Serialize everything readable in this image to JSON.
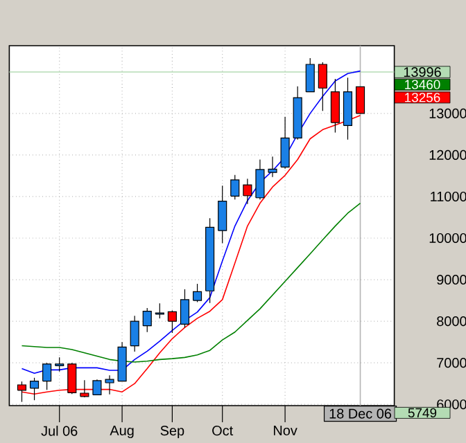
{
  "chart_data": {
    "type": "candlestick",
    "x": [
      "2006-06-12",
      "2006-06-19",
      "2006-06-26",
      "2006-07-03",
      "2006-07-10",
      "2006-07-17",
      "2006-07-24",
      "2006-07-31",
      "2006-08-07",
      "2006-08-14",
      "2006-08-21",
      "2006-08-28",
      "2006-09-04",
      "2006-09-11",
      "2006-09-18",
      "2006-09-25",
      "2006-10-02",
      "2006-10-09",
      "2006-10-16",
      "2006-10-23",
      "2006-10-30",
      "2006-11-06",
      "2006-11-13",
      "2006-11-20",
      "2006-11-27",
      "2006-12-04",
      "2006-12-11",
      "2006-12-18"
    ],
    "ohlc": [
      [
        6470,
        6550,
        6060,
        6340
      ],
      [
        6390,
        6640,
        6100,
        6560
      ],
      [
        6560,
        7000,
        6350,
        6970
      ],
      [
        6930,
        7130,
        6790,
        6970
      ],
      [
        6970,
        7000,
        6250,
        6280
      ],
      [
        6270,
        6580,
        6170,
        6190
      ],
      [
        6230,
        6600,
        6230,
        6570
      ],
      [
        6520,
        6700,
        6240,
        6600
      ],
      [
        6560,
        7500,
        6560,
        7380
      ],
      [
        7410,
        8130,
        7270,
        8000
      ],
      [
        7890,
        8320,
        7740,
        8240
      ],
      [
        8170,
        8430,
        8070,
        8200
      ],
      [
        8230,
        8260,
        7720,
        8000
      ],
      [
        7930,
        8770,
        7850,
        8520
      ],
      [
        8500,
        8900,
        8460,
        8710
      ],
      [
        8730,
        10480,
        8440,
        10260
      ],
      [
        10180,
        11260,
        9880,
        10890
      ],
      [
        11010,
        11520,
        10930,
        11400
      ],
      [
        11280,
        11430,
        10820,
        11020
      ],
      [
        10970,
        11890,
        10930,
        11650
      ],
      [
        11580,
        11960,
        11470,
        11660
      ],
      [
        11710,
        12920,
        11670,
        12410
      ],
      [
        12410,
        13650,
        12370,
        13380
      ],
      [
        13520,
        14330,
        13520,
        14180
      ],
      [
        14180,
        14230,
        13060,
        13610
      ],
      [
        13520,
        13830,
        12540,
        12780
      ],
      [
        12710,
        13860,
        12370,
        13520
      ],
      [
        13640,
        13640,
        13000,
        13000
      ]
    ],
    "colors": [
      "#ff0000",
      "#1a80e6",
      "#1a80e6",
      "#1a80e6",
      "#ff0000",
      "#ff0000",
      "#1a80e6",
      "#1a80e6",
      "#1a80e6",
      "#1a80e6",
      "#1a80e6",
      "#1a80e6",
      "#ff0000",
      "#1a80e6",
      "#1a80e6",
      "#1a80e6",
      "#1a80e6",
      "#1a80e6",
      "#ff0000",
      "#1a80e6",
      "#1a80e6",
      "#1a80e6",
      "#1a80e6",
      "#1a80e6",
      "#ff0000",
      "#ff0000",
      "#1a80e6",
      "#ff0000"
    ],
    "series": [
      {
        "type": "line",
        "color": "#0000ff",
        "values": [
          6860,
          6750,
          6830,
          6830,
          6880,
          6880,
          6880,
          6820,
          6820,
          7080,
          7280,
          7520,
          7780,
          8020,
          8220,
          8570,
          9450,
          10290,
          10900,
          11340,
          11620,
          11950,
          12500,
          13000,
          13410,
          13780,
          13960,
          14020
        ]
      },
      {
        "type": "line",
        "color": "#ff0000",
        "values": [
          6300,
          6250,
          6300,
          6340,
          6360,
          6360,
          6360,
          6360,
          6300,
          6500,
          6860,
          7240,
          7580,
          7850,
          8070,
          8240,
          8520,
          9400,
          10290,
          10840,
          11230,
          11510,
          11890,
          12390,
          12610,
          12720,
          12830,
          12950
        ]
      },
      {
        "type": "line",
        "color": "#008000",
        "values": [
          7410,
          7390,
          7370,
          7370,
          7320,
          7240,
          7160,
          7080,
          7040,
          7020,
          7040,
          7080,
          7100,
          7130,
          7190,
          7300,
          7550,
          7740,
          8020,
          8300,
          8630,
          8960,
          9290,
          9620,
          9960,
          10290,
          10600,
          10840
        ]
      }
    ],
    "xlim": [
      "2006-06-05",
      "2007-01-06"
    ],
    "xticks": [
      {
        "value": "2006-07-03",
        "label": "Jul 06"
      },
      {
        "value": "2006-08-07",
        "label": "Aug"
      },
      {
        "value": "2006-09-04",
        "label": "Sep"
      },
      {
        "value": "2006-10-02",
        "label": "Oct"
      },
      {
        "value": "2006-11-06",
        "label": "Nov"
      }
    ],
    "ylim": [
      5970,
      14630
    ],
    "yticks": [
      6000,
      7000,
      8000,
      9000,
      10000,
      11000,
      12000,
      13000
    ],
    "grid": true,
    "ref_lines": [
      {
        "axis": "y",
        "value": 13996,
        "label": "13996",
        "color": "#b4dcb4",
        "line_style": "solid"
      },
      {
        "axis": "x",
        "value": "2006-12-18",
        "label": "18 Dec 06",
        "color": "#b4b4b4",
        "line_style": "solid"
      }
    ],
    "annotations": [
      "13460",
      "13256",
      "5749"
    ]
  }
}
